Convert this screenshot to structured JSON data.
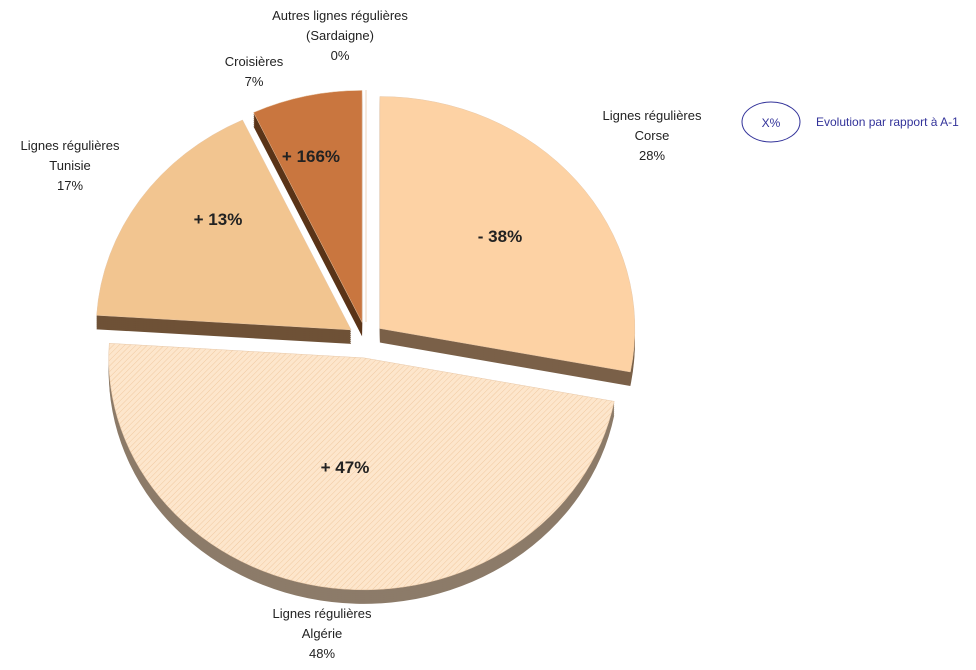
{
  "chart_data": {
    "type": "pie",
    "categories": [
      [
        "Lignes régulières",
        "Corse"
      ],
      [
        "Lignes régulières",
        "Algérie"
      ],
      [
        "Lignes régulières",
        "Tunisie"
      ],
      [
        "Croisières"
      ],
      [
        "Autres lignes régulières",
        "(Sardaigne)"
      ]
    ],
    "values": [
      28,
      48,
      17,
      7,
      0
    ],
    "value_labels": [
      "28%",
      "48%",
      "17%",
      "7%",
      "0%"
    ],
    "evolution_labels": [
      "- 38%",
      "+ 47%",
      "+ 13%",
      "+ 166%",
      null
    ],
    "colors": [
      "#fdd2a4",
      "#fde6cc",
      "#f2c590",
      "#c9763f",
      "#b86a35"
    ],
    "legend": {
      "symbol": "X%",
      "text": "Evolution par rapport à A-1"
    }
  }
}
